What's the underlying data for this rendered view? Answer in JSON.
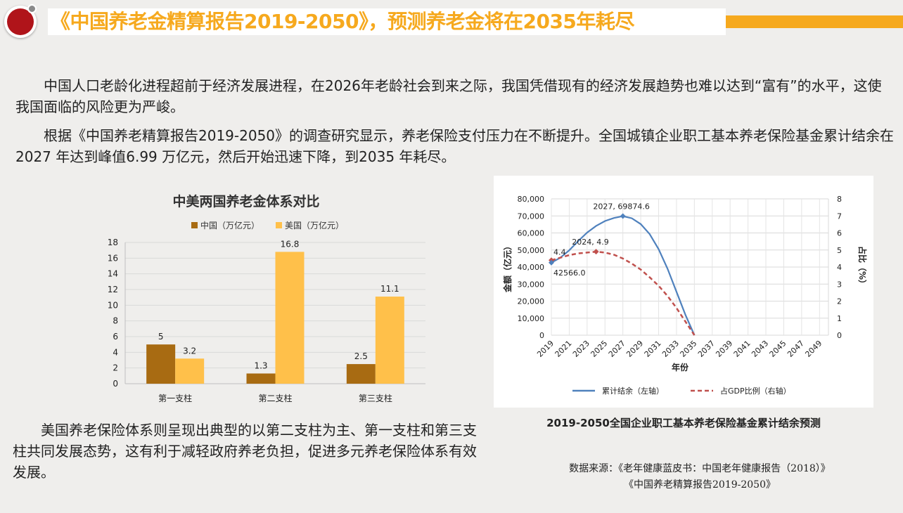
{
  "header": {
    "title": "《中国养老金精算报告2019-2050》，预测养老金将在2035年耗尽",
    "accent_color": "#f6a91e",
    "logo_color": "#b0141a"
  },
  "intro": {
    "p1": "　　中国人口老龄化进程超前于经济发展进程，在2026年老龄社会到来之际，我国凭借现有的经济发展趋势也难以达到“富有”的水平，这使我国面临的风险更为严峻。",
    "p2": "　　根据《中国养老精算报告2019-2050》的调查研究显示，养老保险支付压力在不断提升。全国城镇企业职工基本养老保险基金累计结余在2027 年达到峰值6.99 万亿元，然后开始迅速下降，到2035 年耗尽。"
  },
  "conclusion": {
    "p3": "　　美国养老保险体系则呈现出典型的以第二支柱为主、第一支柱和第三支柱共同发展态势，这有利于减轻政府养老负担，促进多元养老保险体系有效发展。"
  },
  "chart_data": [
    {
      "type": "bar",
      "title": "中美两国养老金体系对比",
      "categories": [
        "第一支柱",
        "第二支柱",
        "第三支柱"
      ],
      "series": [
        {
          "name": "中国（万亿元）",
          "values": [
            5,
            1.3,
            2.5
          ],
          "labels": [
            "5",
            "1.3",
            "2.5"
          ],
          "color": "#a86b12"
        },
        {
          "name": "美国（万亿元）",
          "values": [
            3.2,
            16.8,
            11.1
          ],
          "labels": [
            "3.2",
            "16.8",
            "11.1"
          ],
          "color": "#ffc04a"
        }
      ],
      "ylim": [
        0,
        18
      ],
      "yticks": [
        0,
        2,
        4,
        6,
        8,
        10,
        12,
        14,
        16,
        18
      ],
      "grid": true,
      "legend": "top"
    },
    {
      "type": "line",
      "caption": "2019-2050全国企业职工基本养老保险基金累计结余预测",
      "xlabel": "年份",
      "ylabel_left": "金额（亿元）",
      "ylabel_right": "占比（%）",
      "x_ticks": [
        "2019",
        "2021",
        "2023",
        "2025",
        "2027",
        "2029",
        "2031",
        "2033",
        "2035",
        "2037",
        "2039",
        "2041",
        "2043",
        "2045",
        "2047",
        "2049"
      ],
      "ylim_left": [
        0,
        80000
      ],
      "yticks_left": [
        "0",
        "10,000",
        "20,000",
        "30,000",
        "40,000",
        "50,000",
        "60,000",
        "70,000",
        "80,000"
      ],
      "ylim_right": [
        0,
        8
      ],
      "yticks_right": [
        "0",
        "1",
        "2",
        "3",
        "4",
        "5",
        "6",
        "7",
        "8"
      ],
      "series": [
        {
          "name": "累计结余（左轴）",
          "axis": "left",
          "color": "#4f81bd",
          "style": "solid",
          "points": [
            [
              2019,
              42566
            ],
            [
              2020,
              45500
            ],
            [
              2021,
              49800
            ],
            [
              2022,
              55200
            ],
            [
              2023,
              60200
            ],
            [
              2024,
              64100
            ],
            [
              2025,
              67000
            ],
            [
              2026,
              68800
            ],
            [
              2027,
              69874.6
            ],
            [
              2028,
              68600
            ],
            [
              2029,
              65200
            ],
            [
              2030,
              59300
            ],
            [
              2031,
              50500
            ],
            [
              2032,
              39000
            ],
            [
              2033,
              25500
            ],
            [
              2034,
              12000
            ],
            [
              2035,
              0
            ]
          ]
        },
        {
          "name": "占GDP比例（右轴）",
          "axis": "right",
          "color": "#c0504d",
          "style": "dashed",
          "points": [
            [
              2019,
              4.4
            ],
            [
              2020,
              4.55
            ],
            [
              2021,
              4.7
            ],
            [
              2022,
              4.8
            ],
            [
              2023,
              4.85
            ],
            [
              2024,
              4.9
            ],
            [
              2025,
              4.85
            ],
            [
              2026,
              4.72
            ],
            [
              2027,
              4.5
            ],
            [
              2028,
              4.2
            ],
            [
              2029,
              3.85
            ],
            [
              2030,
              3.4
            ],
            [
              2031,
              2.9
            ],
            [
              2032,
              2.3
            ],
            [
              2033,
              1.6
            ],
            [
              2034,
              0.8
            ],
            [
              2035,
              0
            ]
          ]
        }
      ],
      "annotations": [
        {
          "x": 2027,
          "y": 69874.6,
          "axis": "left",
          "text": "2027, 69874.6"
        },
        {
          "x": 2024,
          "y": 4.9,
          "axis": "right",
          "text": "2024, 4.9"
        },
        {
          "x": 2019,
          "y": 4.4,
          "axis": "right",
          "text": "4.4"
        },
        {
          "x": 2019,
          "y": 42566,
          "axis": "left",
          "text": "42566.0"
        }
      ]
    }
  ],
  "source": {
    "line1": "数据来源：《老年健康蓝皮书：中国老年健康报告（2018）》",
    "line2": "《中国养老精算报告2019-2050》"
  }
}
